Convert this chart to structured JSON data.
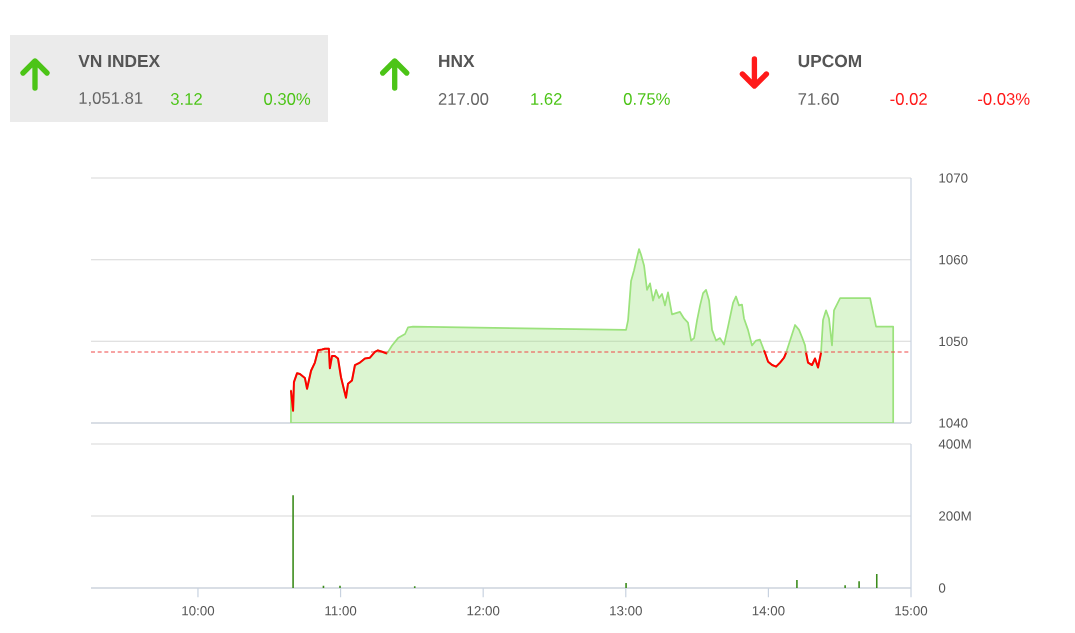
{
  "chart_data": [
    {
      "type": "other",
      "annotations": [
        "VN INDEX",
        "1,051.81",
        "3.12",
        "0.30%",
        "HNX",
        "217.00",
        "1.62",
        "0.75%",
        "UPCOM",
        "71.60",
        "-0.02",
        "-0.03%"
      ]
    },
    {
      "type": "area",
      "xlim": [
        9.25,
        15
      ],
      "ylim": [
        1040,
        1070
      ],
      "yticks": [
        1040,
        1050,
        1060,
        1070
      ],
      "grid": "y",
      "tick_labels": "y",
      "ref_lines": [
        {
          "axis": "y",
          "value": 1048.7,
          "color": "#f04848",
          "line_style": "dashed"
        }
      ],
      "series": [
        {
          "type": "area",
          "color": "#9be27c",
          "x": [
            10.652,
            10.667,
            10.673,
            10.695,
            10.715,
            10.75,
            10.765,
            10.793,
            10.82,
            10.842,
            10.87,
            10.89,
            10.918,
            10.925,
            10.94,
            10.96,
            10.982,
            11.003,
            11.038,
            11.052,
            11.08,
            11.101,
            11.136,
            11.171,
            11.206,
            11.241,
            11.262,
            11.297,
            11.325,
            11.361,
            11.403,
            11.452,
            11.473,
            11.508,
            13.002,
            13.016,
            13.037,
            13.058,
            13.079,
            13.093,
            13.107,
            13.128,
            13.149,
            13.17,
            13.191,
            13.212,
            13.233,
            13.254,
            13.275,
            13.296,
            13.324,
            13.38,
            13.408,
            13.436,
            13.458,
            13.479,
            13.5,
            13.521,
            13.542,
            13.563,
            13.584,
            13.605,
            13.633,
            13.661,
            13.689,
            13.717,
            13.752,
            13.773,
            13.794,
            13.815,
            13.829,
            13.857,
            13.885,
            13.913,
            13.941,
            13.969,
            13.976,
            13.998,
            14.026,
            14.054,
            14.082,
            14.11,
            14.124,
            14.152,
            14.187,
            14.215,
            14.236,
            14.257,
            14.264,
            14.278,
            14.306,
            14.327,
            14.348,
            14.369,
            14.383,
            14.404,
            14.425,
            14.446,
            14.46,
            14.503,
            14.713,
            14.755,
            14.875
          ],
          "values": [
            1044.0,
            1041.5,
            1045.0,
            1046.1,
            1046.0,
            1045.5,
            1044.2,
            1046.4,
            1047.4,
            1048.9,
            1049.0,
            1049.1,
            1049.1,
            1046.7,
            1048.2,
            1048.2,
            1047.9,
            1045.6,
            1043.1,
            1044.8,
            1045.2,
            1047.1,
            1047.4,
            1047.9,
            1048.0,
            1048.7,
            1048.9,
            1048.7,
            1048.5,
            1049.5,
            1050.4,
            1050.9,
            1051.7,
            1051.8,
            1051.4,
            1052.6,
            1057.4,
            1058.7,
            1060.3,
            1061.3,
            1060.6,
            1059.3,
            1056.3,
            1057.1,
            1055.0,
            1056.3,
            1055.3,
            1055.8,
            1054.4,
            1056.0,
            1053.3,
            1053.6,
            1052.8,
            1052.3,
            1050.1,
            1050.4,
            1052.6,
            1054.4,
            1055.9,
            1056.3,
            1055.0,
            1051.4,
            1050.1,
            1050.4,
            1049.6,
            1051.8,
            1054.7,
            1055.5,
            1054.4,
            1054.5,
            1052.8,
            1051.4,
            1049.5,
            1050.1,
            1050.2,
            1048.9,
            1048.6,
            1047.5,
            1047.1,
            1046.9,
            1047.4,
            1048.0,
            1048.6,
            1050.1,
            1052.0,
            1051.4,
            1050.5,
            1049.5,
            1048.6,
            1047.4,
            1047.1,
            1047.9,
            1046.8,
            1048.6,
            1052.6,
            1053.8,
            1052.8,
            1049.5,
            1053.8,
            1055.3,
            1055.3,
            1051.8,
            1051.8
          ]
        },
        {
          "type": "line",
          "color": "#ff0000",
          "x": [
            10.652,
            10.667,
            10.673,
            10.695,
            10.715,
            10.75,
            10.765,
            10.793,
            10.82,
            10.842,
            10.87,
            10.89,
            10.918,
            10.925,
            10.94,
            10.96,
            10.982,
            11.003,
            11.038,
            11.052,
            11.08,
            11.101,
            11.136,
            11.171,
            11.206,
            11.241,
            11.262,
            11.297,
            11.325
          ],
          "values": [
            1044.0,
            1041.5,
            1045.0,
            1046.1,
            1046.0,
            1045.5,
            1044.2,
            1046.4,
            1047.4,
            1048.9,
            1049.0,
            1049.1,
            1049.1,
            1046.7,
            1048.2,
            1048.2,
            1047.9,
            1045.6,
            1043.1,
            1044.8,
            1045.2,
            1047.1,
            1047.4,
            1047.9,
            1048.0,
            1048.7,
            1048.9,
            1048.7,
            1048.5
          ]
        },
        {
          "type": "line",
          "color": "#ff0000",
          "x": [
            13.969,
            13.976,
            13.998,
            14.026,
            14.054,
            14.082,
            14.11,
            14.124
          ],
          "values": [
            1048.9,
            1048.6,
            1047.5,
            1047.1,
            1046.9,
            1047.4,
            1048.0,
            1048.6
          ]
        },
        {
          "type": "line",
          "color": "#ff0000",
          "x": [
            14.264,
            14.278,
            14.306,
            14.327,
            14.348,
            14.369
          ],
          "values": [
            1048.6,
            1047.4,
            1047.1,
            1047.9,
            1046.8,
            1048.6
          ]
        }
      ]
    },
    {
      "type": "bar",
      "xlim": [
        9.25,
        15
      ],
      "ylim": [
        0,
        400
      ],
      "grid": "y",
      "color": "#3c8c1c",
      "xticks": [
        {
          "value": 10,
          "label": "10:00"
        },
        {
          "value": 11,
          "label": "11:00"
        },
        {
          "value": 12,
          "label": "12:00"
        },
        {
          "value": 13,
          "label": "13:00"
        },
        {
          "value": 14,
          "label": "14:00"
        },
        {
          "value": 15,
          "label": "15:00"
        }
      ],
      "yticks": [
        0,
        {
          "value": 200,
          "label": "200M"
        },
        {
          "value": 400,
          "label": "400M"
        }
      ],
      "x": [
        10.667,
        10.88,
        10.996,
        11.52,
        13.002,
        14.2,
        14.538,
        14.636,
        14.76
      ],
      "values": [
        258,
        6,
        6,
        5,
        14,
        22,
        8,
        19,
        39
      ]
    }
  ]
}
